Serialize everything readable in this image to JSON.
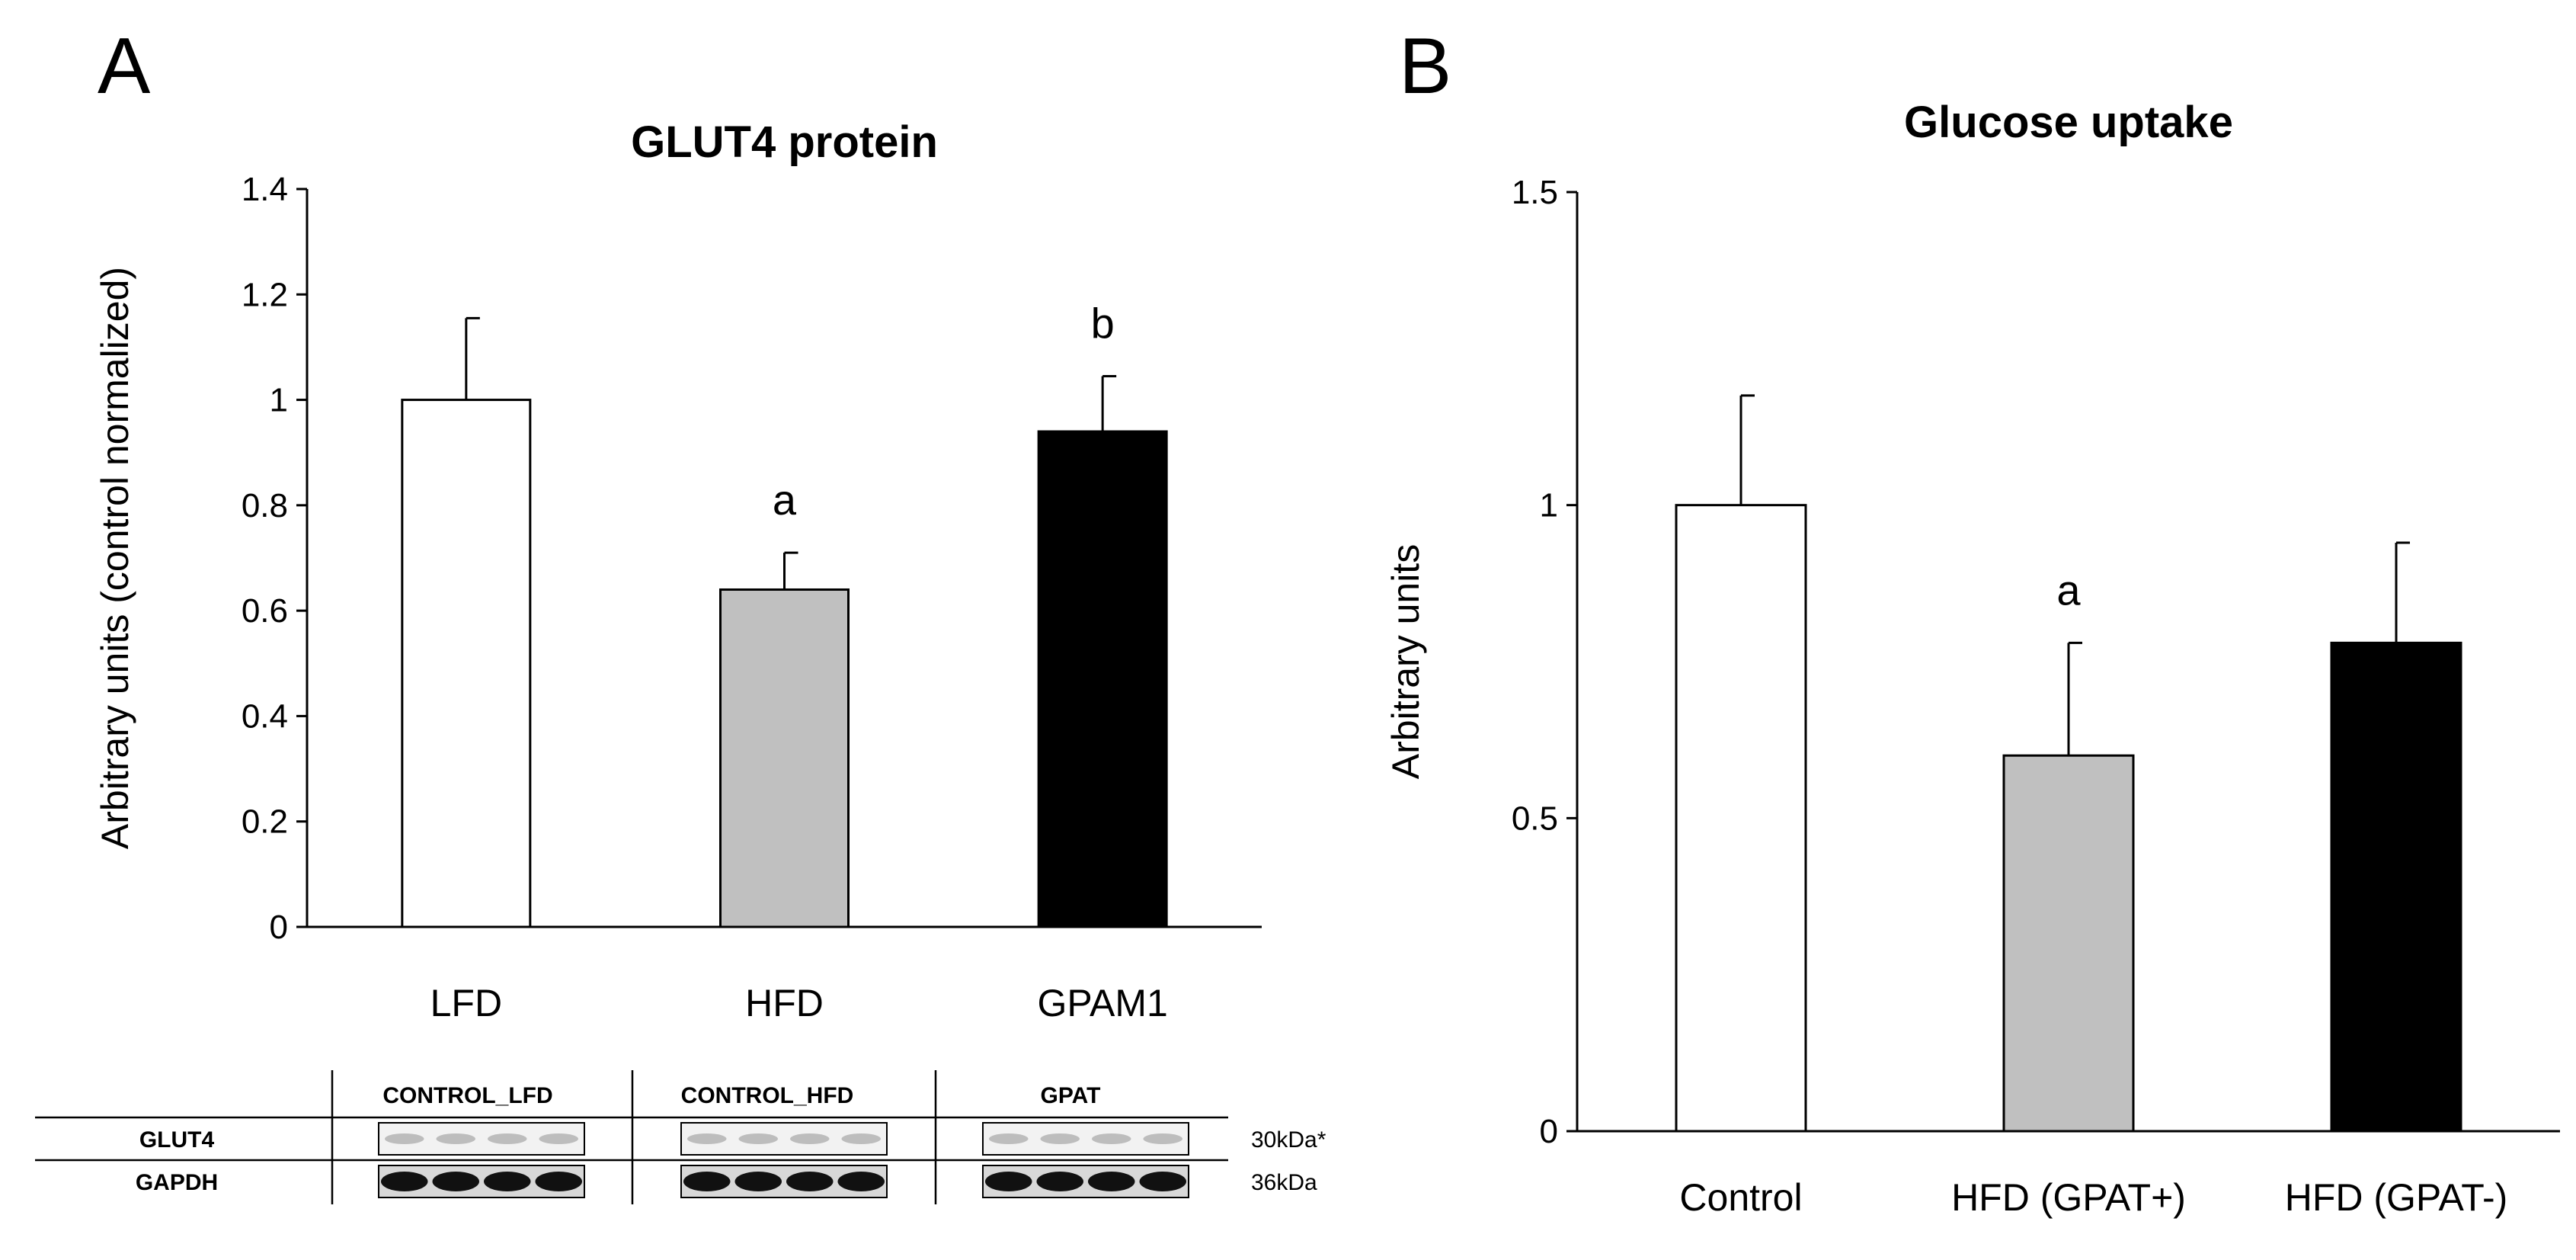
{
  "panels": {
    "a": {
      "letter": "A"
    },
    "b": {
      "letter": "B"
    }
  },
  "chart_data": [
    {
      "type": "bar",
      "title": "GLUT4 protein",
      "xlabel": "",
      "ylabel": "Arbitrary units (control normalized)",
      "categories": [
        "LFD",
        "HFD",
        "GPAM1"
      ],
      "values": [
        1.0,
        0.64,
        0.94
      ],
      "errors": [
        0.155,
        0.07,
        0.105
      ],
      "annotations": [
        "",
        "a",
        "b"
      ],
      "bar_colors": [
        "#ffffff",
        "#c0c0c0",
        "#000000"
      ],
      "ylim": [
        0,
        1.4
      ],
      "yticks": [
        0,
        0.2,
        0.4,
        0.6,
        0.8,
        1,
        1.2,
        1.4
      ],
      "ytick_labels": [
        "0",
        "0.2",
        "0.4",
        "0.6",
        "0.8",
        "1",
        "1.2",
        "1.4"
      ],
      "grid": false,
      "legend": "none"
    },
    {
      "type": "bar",
      "title": "Glucose uptake",
      "xlabel": "",
      "ylabel": "Arbitrary units",
      "categories": [
        "Control",
        "HFD (GPAT+)",
        "HFD (GPAT-)"
      ],
      "values": [
        1.0,
        0.6,
        0.78
      ],
      "errors": [
        0.175,
        0.18,
        0.16
      ],
      "annotations": [
        "",
        "a",
        ""
      ],
      "bar_colors": [
        "#ffffff",
        "#c0c0c0",
        "#000000"
      ],
      "ylim": [
        0,
        1.5
      ],
      "yticks": [
        0,
        0.5,
        1,
        1.5
      ],
      "ytick_labels": [
        "0",
        "0.5",
        "1",
        "1.5"
      ],
      "grid": false,
      "legend": "none"
    }
  ],
  "blot": {
    "groups": [
      "CONTROL_LFD",
      "CONTROL_HFD",
      "GPAT"
    ],
    "rows": [
      {
        "label": "GLUT4",
        "kda": "30kDa*",
        "tone": "faint"
      },
      {
        "label": "GAPDH",
        "kda": "36kDa",
        "tone": "strong"
      }
    ],
    "lanes_per_group": 4
  }
}
